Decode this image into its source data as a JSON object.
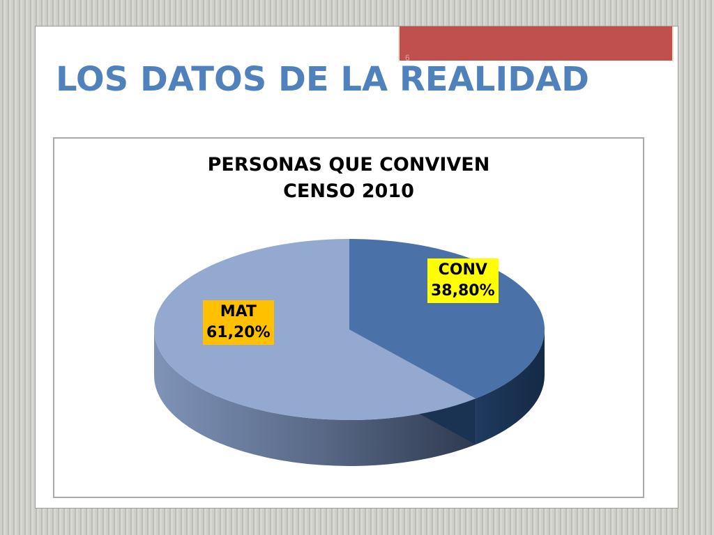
{
  "slide": {
    "number": "6",
    "title": "LOS DATOS DE LA REALIDAD",
    "accent_color": "#c0504d",
    "title_color": "#4f81bd"
  },
  "chart_data": {
    "type": "pie",
    "title_lines": [
      "PERSONAS QUE CONVIVEN",
      "CENSO 2010"
    ],
    "slices": [
      {
        "name": "CONV",
        "value": 38.8,
        "label": "38,80%",
        "color": "#4a72a8",
        "label_bg": "#ffff00"
      },
      {
        "name": "MAT",
        "value": 61.2,
        "label": "61,20%",
        "color": "#93a9d0",
        "label_bg": "#ffc000"
      }
    ],
    "style": "3d",
    "legend": "none"
  }
}
